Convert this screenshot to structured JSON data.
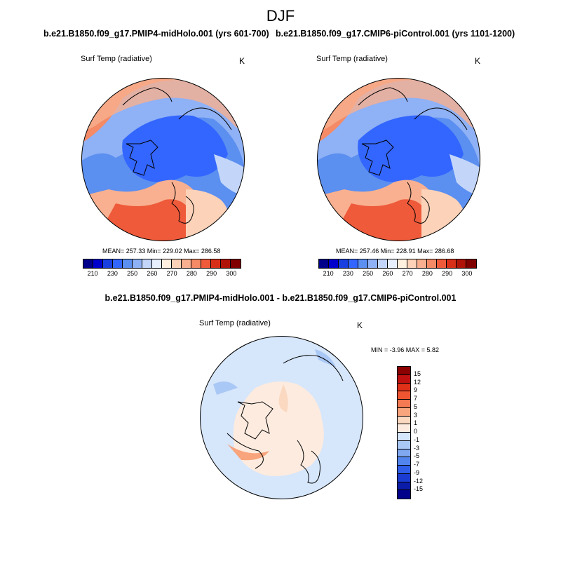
{
  "page_title": "DJF",
  "panels": [
    {
      "case_title": "b.e21.B1850.f09_g17.PMIP4-midHolo.001 (yrs 601-700)",
      "variable": "Surf Temp (radiative)",
      "units": "K",
      "stats": "MEAN= 257.33  Min= 229.02  Max= 286.58",
      "colorbar_ticks": [
        "210",
        "230",
        "250",
        "260",
        "270",
        "280",
        "290",
        "300"
      ]
    },
    {
      "case_title": "b.e21.B1850.f09_g17.CMIP6-piControl.001 (yrs 1101-1200)",
      "variable": "Surf Temp (radiative)",
      "units": "K",
      "stats": "MEAN= 257.46  Min= 228.91  Max= 286.68",
      "colorbar_ticks": [
        "210",
        "230",
        "250",
        "260",
        "270",
        "280",
        "290",
        "300"
      ]
    }
  ],
  "diff_panel": {
    "case_title": "b.e21.B1850.f09_g17.PMIP4-midHolo.001 - b.e21.B1850.f09_g17.CMIP6-piControl.001",
    "variable": "Surf Temp (radiative)",
    "units": "K",
    "stats": "MIN =  -3.96 MAX =   5.82",
    "colorbar_ticks": [
      "15",
      "12",
      "9",
      "7",
      "5",
      "3",
      "1",
      "0",
      "-1",
      "-3",
      "-5",
      "-7",
      "-9",
      "-12",
      "-15"
    ]
  },
  "colors": {
    "abs_scale": [
      "#00008b",
      "#0000cd",
      "#1a3fe0",
      "#3366ff",
      "#5b8ff0",
      "#8fb1f5",
      "#c3d6fa",
      "#e8f0ff",
      "#fff0e0",
      "#fcd2b8",
      "#f8b090",
      "#f48a66",
      "#ee5a3a",
      "#d83018",
      "#b01408",
      "#800000"
    ],
    "diff_scale": [
      "#8b0000",
      "#c01010",
      "#e03018",
      "#ee5530",
      "#f37a52",
      "#f8a47c",
      "#fbd8c0",
      "#fdebdf",
      "#d6e6fb",
      "#aac8f5",
      "#7fa8f0",
      "#5284ee",
      "#2f5ee8",
      "#1a3cd0",
      "#0a1ca8",
      "#00008b"
    ]
  }
}
